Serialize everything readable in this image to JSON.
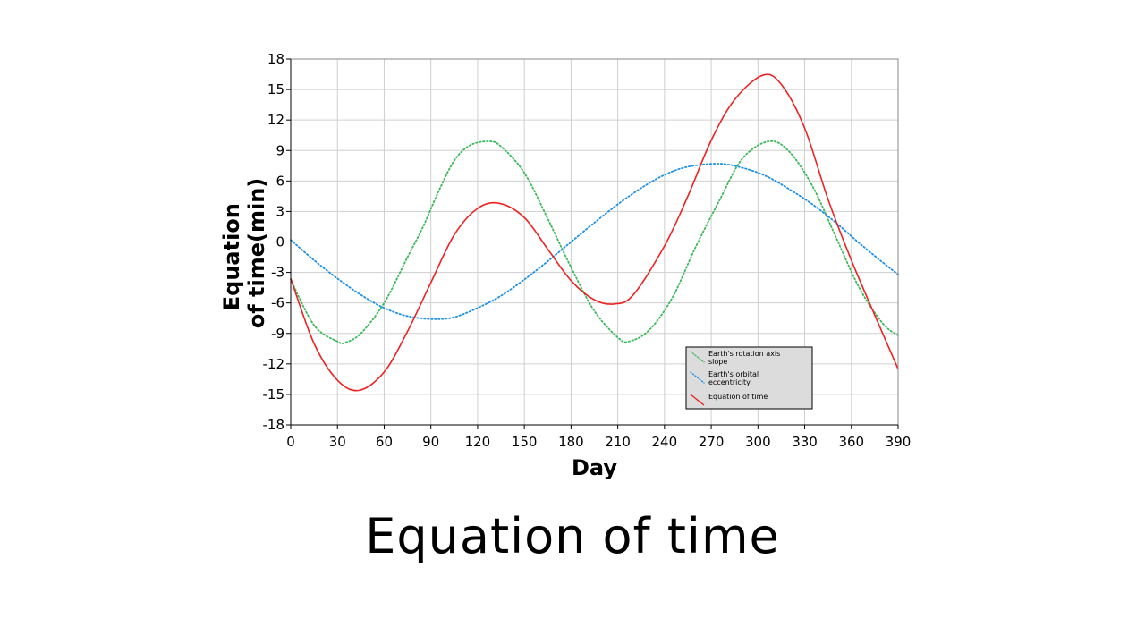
{
  "caption": "Equation of time",
  "chart_data": {
    "type": "line",
    "xlabel": "Day",
    "ylabel": "Equation of time(min)",
    "ylabel_lines": [
      "Equation",
      "of time(min)"
    ],
    "xlim": [
      0,
      390
    ],
    "ylim": [
      -18,
      18
    ],
    "xticks": [
      0,
      30,
      60,
      90,
      120,
      150,
      180,
      210,
      240,
      270,
      300,
      330,
      360,
      390
    ],
    "yticks": [
      -18,
      -15,
      -12,
      -9,
      -6,
      -3,
      0,
      3,
      6,
      9,
      12,
      15,
      18
    ],
    "grid": true,
    "legend_position": "bottom-right",
    "series": [
      {
        "name": "Earth's rotation axis slope",
        "legend_lines": [
          "Earth's rotation axis",
          "slope"
        ],
        "color": "#3cb95a",
        "style": "dotted",
        "x": [
          0,
          15,
          30,
          35,
          45,
          60,
          75,
          85,
          95,
          105,
          115,
          127,
          135,
          150,
          165,
          180,
          195,
          210,
          217,
          230,
          245,
          260,
          275,
          290,
          307,
          320,
          335,
          350,
          365,
          380,
          390
        ],
        "y": [
          -3.7,
          -8.2,
          -9.8,
          -9.9,
          -9.0,
          -6.0,
          -1.5,
          1.5,
          5.0,
          8.0,
          9.5,
          9.9,
          9.4,
          6.8,
          2.3,
          -2.5,
          -6.8,
          -9.4,
          -9.8,
          -8.7,
          -5.5,
          -0.5,
          4.0,
          8.2,
          9.9,
          8.9,
          5.5,
          0.5,
          -4.5,
          -8.0,
          -9.2
        ]
      },
      {
        "name": "Earth's orbital eccentricity",
        "legend_lines": [
          "Earth's orbital",
          "eccentricity"
        ],
        "color": "#1e90e6",
        "style": "dotted",
        "x": [
          0,
          15,
          30,
          45,
          60,
          75,
          92,
          105,
          120,
          135,
          150,
          165,
          180,
          195,
          210,
          225,
          240,
          255,
          275,
          290,
          305,
          320,
          335,
          350,
          365,
          380,
          390
        ],
        "y": [
          0.2,
          -1.8,
          -3.6,
          -5.2,
          -6.5,
          -7.3,
          -7.6,
          -7.4,
          -6.5,
          -5.3,
          -3.7,
          -1.9,
          0.0,
          1.9,
          3.7,
          5.3,
          6.6,
          7.4,
          7.7,
          7.3,
          6.5,
          5.2,
          3.7,
          1.9,
          -0.1,
          -2.0,
          -3.2
        ]
      },
      {
        "name": "Equation of time",
        "legend_lines": [
          "Equation of time"
        ],
        "color": "#ee2222",
        "style": "solid",
        "x": [
          0,
          15,
          30,
          44,
          60,
          75,
          90,
          105,
          120,
          134,
          150,
          165,
          180,
          195,
          208,
          220,
          240,
          255,
          270,
          285,
          303,
          315,
          330,
          345,
          360,
          375,
          390
        ],
        "y": [
          -3.6,
          -10.0,
          -13.6,
          -14.6,
          -12.8,
          -8.8,
          -4.0,
          0.7,
          3.3,
          3.8,
          2.4,
          -0.7,
          -3.8,
          -5.7,
          -6.1,
          -5.2,
          -0.4,
          4.5,
          10.0,
          14.0,
          16.4,
          15.5,
          11.2,
          4.2,
          -1.8,
          -7.2,
          -12.5
        ]
      }
    ]
  }
}
